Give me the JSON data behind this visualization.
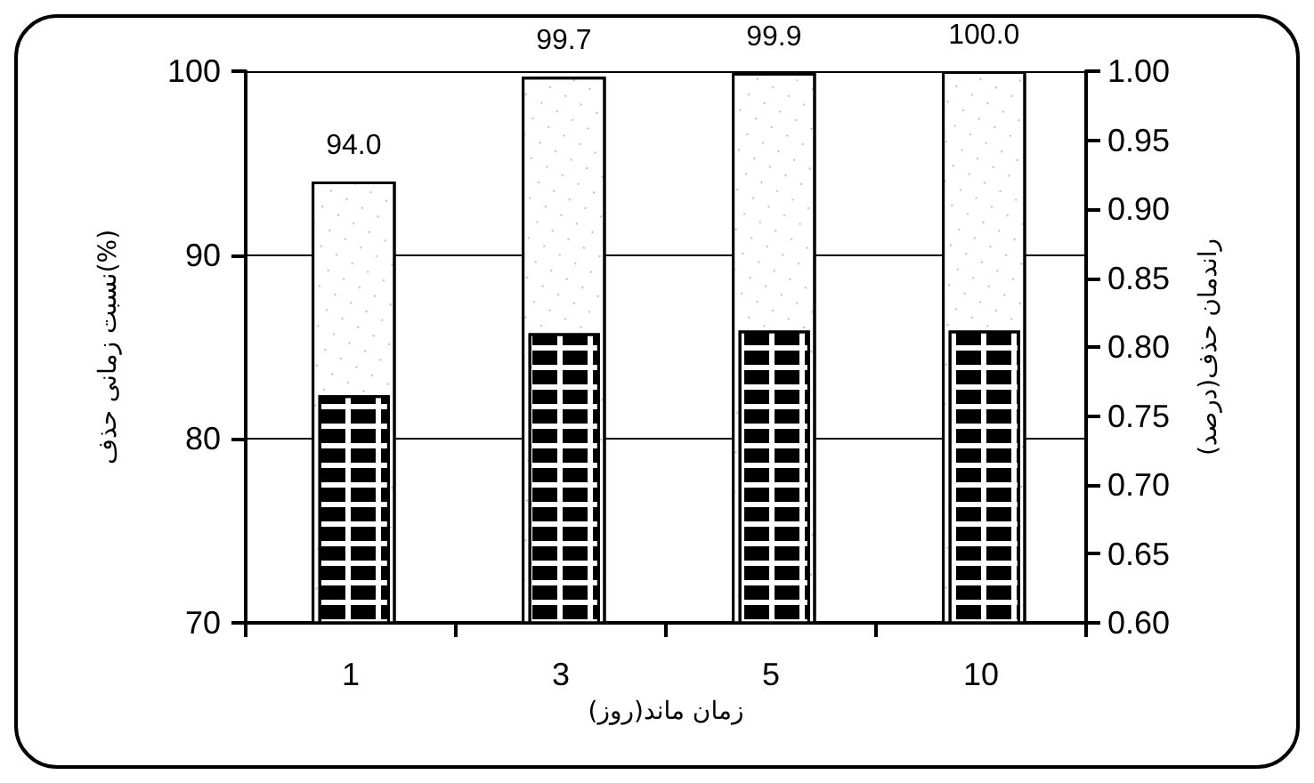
{
  "chart_data": {
    "type": "bar",
    "xlabel": "زمان ماند(روز)",
    "ylabel": "نسبت زمانی حذف(%)",
    "y2label": "راندمان حذف(درصد)",
    "categories": [
      "1",
      "3",
      "5",
      "10"
    ],
    "series": [
      {
        "color": "#ffffff",
        "values": [
          94.0,
          99.7,
          99.9,
          100.0
        ],
        "value_labels": [
          "94.0",
          "99.7",
          "99.9",
          "100.0"
        ]
      },
      {
        "color": "#ffffff",
        "axis": "y2",
        "values": [
          0.765,
          0.81,
          0.812,
          0.812
        ]
      }
    ],
    "ylim": [
      70,
      100
    ],
    "yticks": [
      70,
      80,
      90,
      100
    ],
    "y2lim": [
      0.6,
      1.0
    ],
    "y2ticks": [
      {
        "value": 0.6,
        "label": "0.60"
      },
      {
        "value": 0.65,
        "label": "0.65"
      },
      {
        "value": 0.7,
        "label": "0.70"
      },
      {
        "value": 0.75,
        "label": "0.75"
      },
      {
        "value": 0.8,
        "label": "0.80"
      },
      {
        "value": 0.85,
        "label": "0.85"
      },
      {
        "value": 0.9,
        "label": "0.90"
      },
      {
        "value": 0.95,
        "label": "0.95"
      },
      {
        "value": 1.0,
        "label": "1.00"
      }
    ],
    "grid": "y"
  }
}
